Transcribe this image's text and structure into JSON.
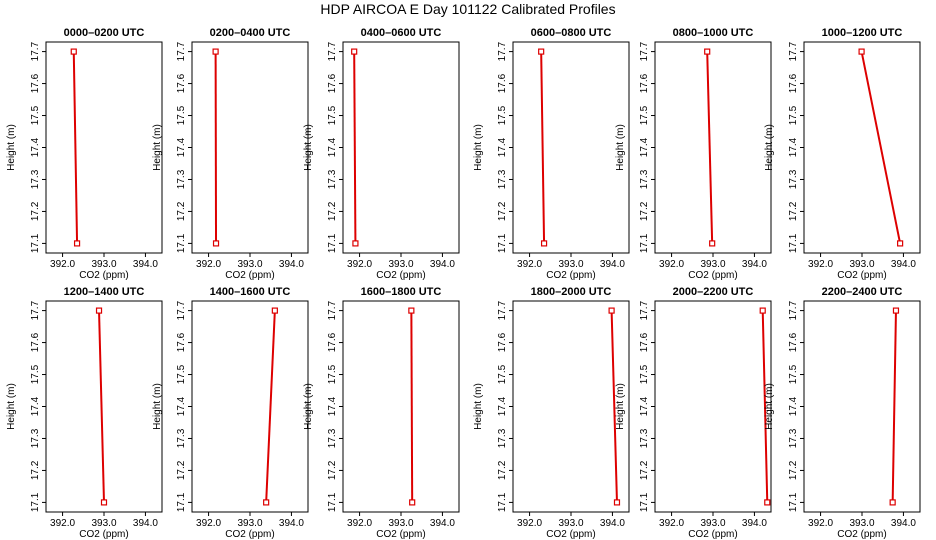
{
  "chart_data": {
    "title": "HDP AIRCOA E  Day 101122  Calibrated Profiles",
    "type": "line",
    "xlabel": "CO2 (ppm)",
    "ylabel": "Height (m)",
    "xlim": [
      391.6,
      394.4
    ],
    "ylim": [
      17.07,
      17.73
    ],
    "xticks": [
      "392.0",
      "393.0",
      "394.0"
    ],
    "yticks": [
      "17.1",
      "17.2",
      "17.3",
      "17.4",
      "17.5",
      "17.6",
      "17.7"
    ],
    "line_color": "#dd0000",
    "panels": [
      {
        "title": "0000–0200 UTC",
        "points": [
          {
            "x": 392.35,
            "y": 17.1
          },
          {
            "x": 392.27,
            "y": 17.7
          }
        ]
      },
      {
        "title": "0200–0400 UTC",
        "points": [
          {
            "x": 392.18,
            "y": 17.1
          },
          {
            "x": 392.17,
            "y": 17.7
          }
        ]
      },
      {
        "title": "0400–0600 UTC",
        "points": [
          {
            "x": 391.9,
            "y": 17.1
          },
          {
            "x": 391.87,
            "y": 17.7
          }
        ]
      },
      {
        "title": "0600–0800 UTC",
        "points": [
          {
            "x": 392.35,
            "y": 17.1
          },
          {
            "x": 392.28,
            "y": 17.7
          }
        ]
      },
      {
        "title": "0800–1000 UTC",
        "points": [
          {
            "x": 392.98,
            "y": 17.1
          },
          {
            "x": 392.86,
            "y": 17.7
          }
        ]
      },
      {
        "title": "1000–1200 UTC",
        "points": [
          {
            "x": 393.92,
            "y": 17.1
          },
          {
            "x": 392.99,
            "y": 17.7
          }
        ]
      },
      {
        "title": "1200–1400 UTC",
        "points": [
          {
            "x": 393.0,
            "y": 17.1
          },
          {
            "x": 392.88,
            "y": 17.7
          }
        ]
      },
      {
        "title": "1400–1600 UTC",
        "points": [
          {
            "x": 393.39,
            "y": 17.1
          },
          {
            "x": 393.6,
            "y": 17.7
          }
        ]
      },
      {
        "title": "1600–1800 UTC",
        "points": [
          {
            "x": 393.27,
            "y": 17.1
          },
          {
            "x": 393.25,
            "y": 17.7
          }
        ]
      },
      {
        "title": "1800–2000 UTC",
        "points": [
          {
            "x": 394.11,
            "y": 17.1
          },
          {
            "x": 393.98,
            "y": 17.7
          }
        ]
      },
      {
        "title": "2000–2200 UTC",
        "points": [
          {
            "x": 394.31,
            "y": 17.1
          },
          {
            "x": 394.2,
            "y": 17.7
          }
        ]
      },
      {
        "title": "2200–2400 UTC",
        "points": [
          {
            "x": 393.74,
            "y": 17.1
          },
          {
            "x": 393.82,
            "y": 17.7
          }
        ]
      }
    ]
  }
}
